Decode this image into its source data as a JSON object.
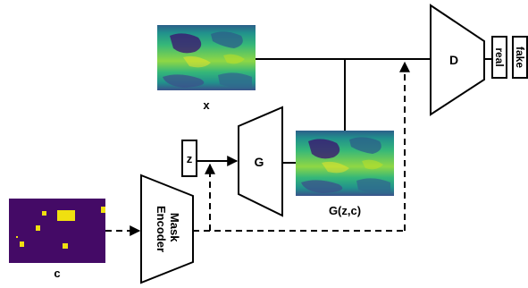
{
  "blocks": {
    "generator": "G",
    "discriminator": "D",
    "mask_encoder_line1": "Mask",
    "mask_encoder_line2": "Encoder"
  },
  "images": {
    "real": "x",
    "generated": "G(z,c)",
    "condition": "c"
  },
  "inputs": {
    "noise": "z"
  },
  "outputs": {
    "real": "real",
    "fake": "fake"
  },
  "colors": {
    "mask_background": "#440a66",
    "mask_patches": "#f0e010",
    "map_palette": [
      "#3b0f70",
      "#2c5f8a",
      "#21918c",
      "#35b779",
      "#8fd744",
      "#fde725"
    ]
  }
}
